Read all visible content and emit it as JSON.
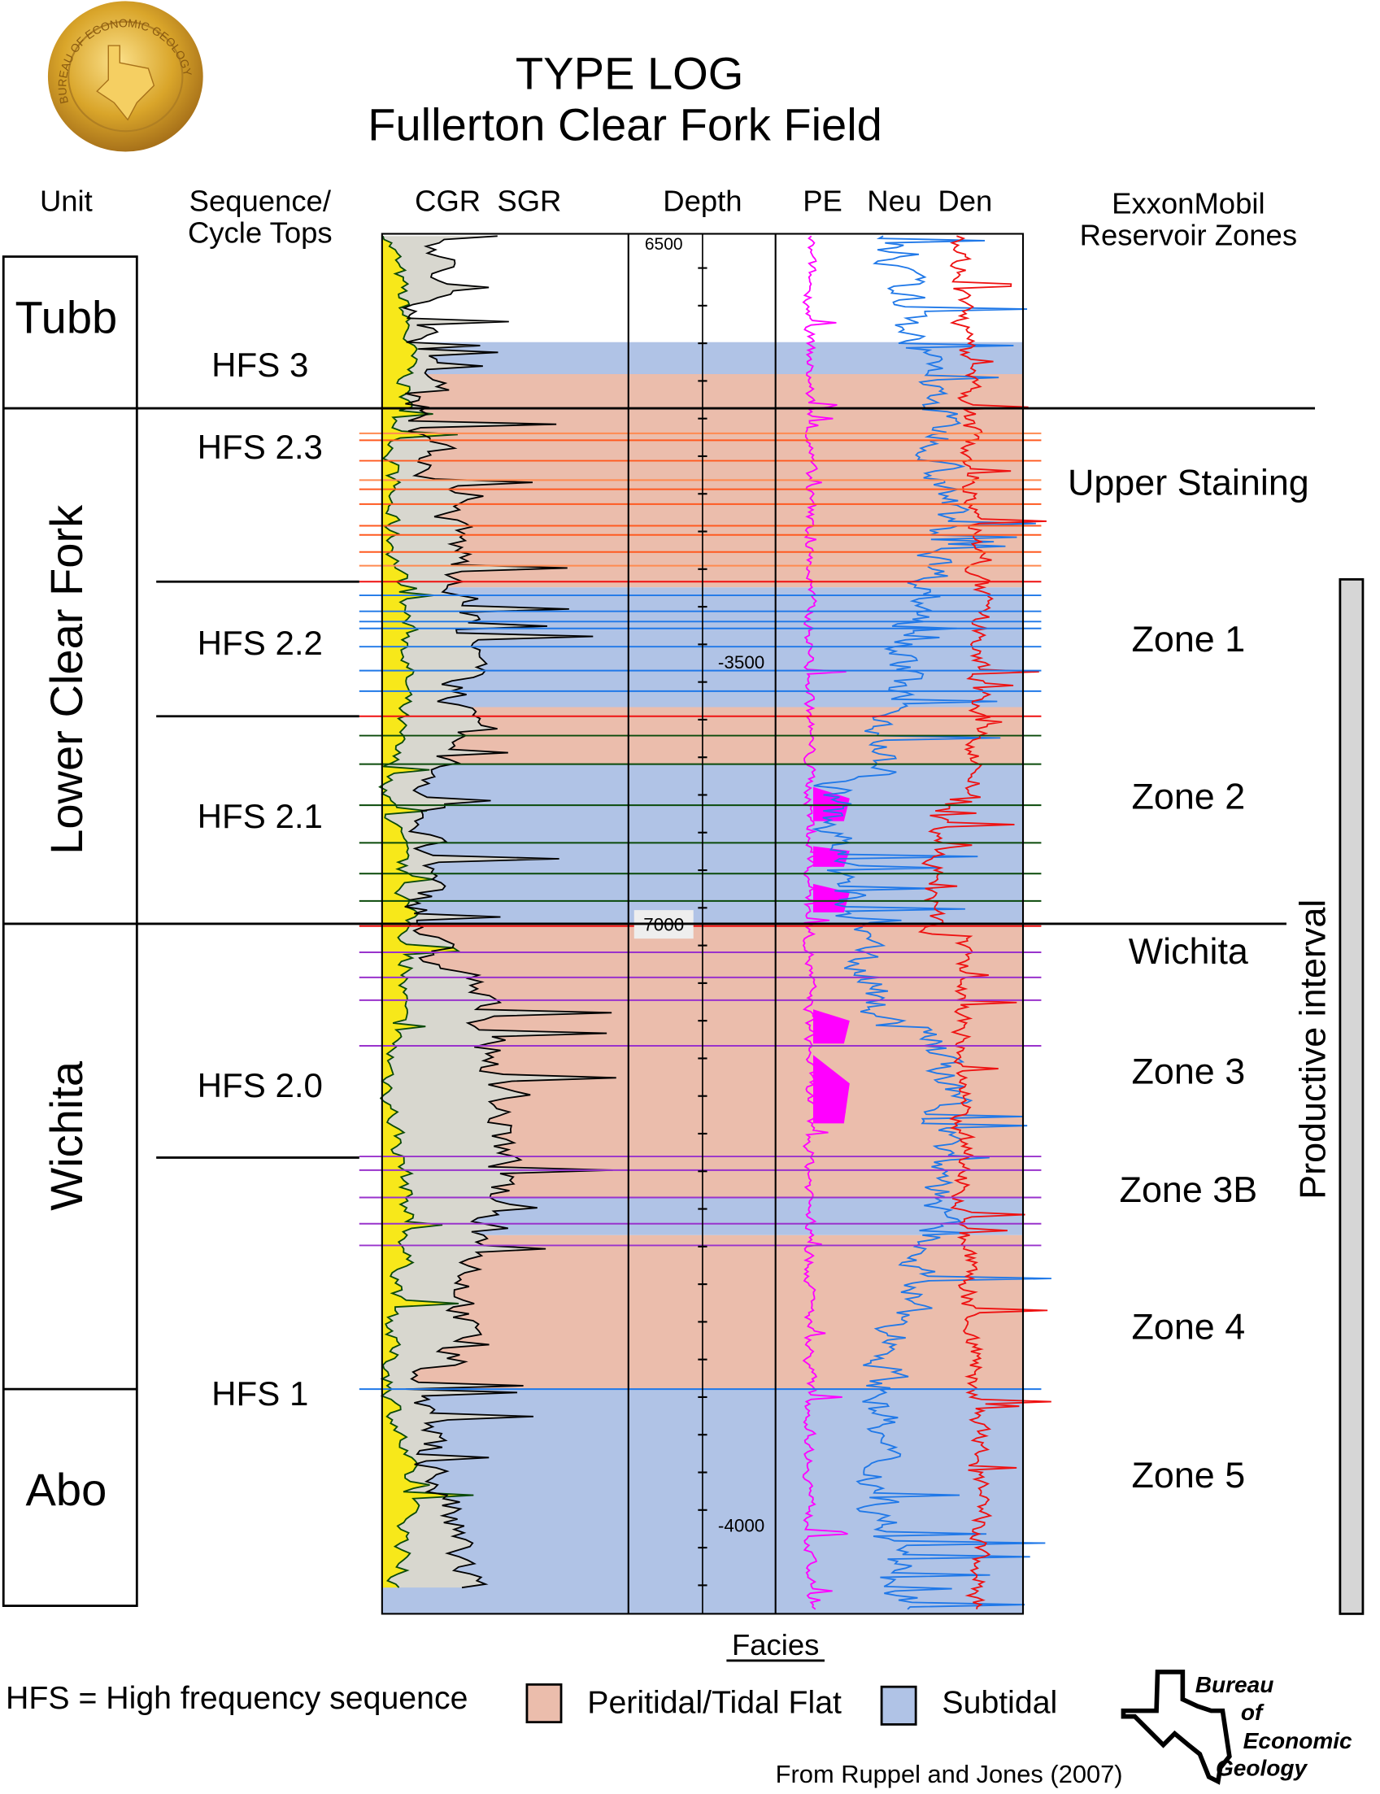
{
  "title": {
    "line1": "TYPE LOG",
    "line2": "Fullerton Clear Fork Field"
  },
  "seal": {
    "text": "BUREAU OF ECONOMIC GEOLOGY"
  },
  "columns": {
    "unit": "Unit",
    "sequence_line1": "Sequence/",
    "sequence_line2": "Cycle Tops",
    "gr": "CGR  SGR",
    "depth": "Depth",
    "porosity": "PE   Neu  Den",
    "zones_line1": "ExxonMobil",
    "zones_line2": "Reservoir Zones"
  },
  "units": [
    "Tubb",
    "Lower Clear Fork",
    "Wichita",
    "Abo"
  ],
  "sequences": [
    "HFS 3",
    "HFS 2.3",
    "HFS 2.2",
    "HFS 2.1",
    "HFS 2.0",
    "HFS 1"
  ],
  "zones": [
    "Upper Staining",
    "Zone 1",
    "Zone 2",
    "Wichita",
    "Zone 3",
    "Zone 3B",
    "Zone 4",
    "Zone 5"
  ],
  "depth_labels": {
    "md_top": "6500",
    "subsea_1": "-3500",
    "md_mid": "7000",
    "subsea_2": "-4000"
  },
  "productive_interval": "Productive interval",
  "facies": {
    "title": "Facies",
    "items": [
      {
        "label": "Peritidal/Tidal Flat",
        "color": "#ebbdac"
      },
      {
        "label": "Subtidal",
        "color": "#b0c3e6"
      }
    ]
  },
  "note": "HFS = High frequency sequence",
  "credit": "From Ruppel and Jones (2007)",
  "logo": {
    "line1": "Bureau",
    "line2": "of",
    "line3": "Economic",
    "line4": "Geology"
  },
  "colors": {
    "cgr_fill": "#f7e81a",
    "sgr_fill": "#d8d7cf",
    "pe": "#ff00ff",
    "neu": "#1f78e8",
    "den": "#ee1111",
    "seal_gold": "#d9a52a"
  }
}
